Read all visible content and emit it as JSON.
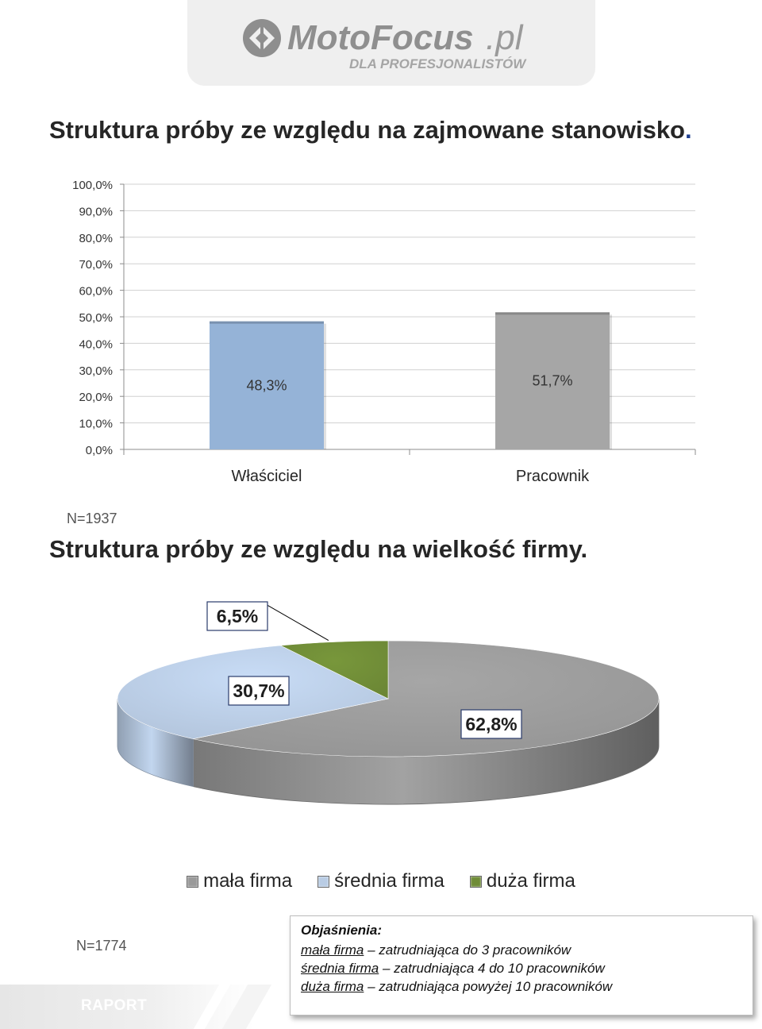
{
  "logo": {
    "brand_main": "MotoFocus",
    "brand_suffix": ".pl",
    "tagline": "DLA PROFESJONALISTÓW"
  },
  "chart1": {
    "title": "Struktura próby ze względu na zajmowane stanowisko",
    "title_dot": ".",
    "sample_note": "N=1937"
  },
  "chart2": {
    "title": "Struktura próby ze względu na wielkość firmy.",
    "sample_note": "N=1774"
  },
  "chart_data": [
    {
      "type": "bar",
      "title": "Struktura próby ze względu na zajmowane stanowisko.",
      "categories": [
        "Właściciel",
        "Pracownik"
      ],
      "values": [
        48.3,
        51.7
      ],
      "value_labels": [
        "48,3%",
        "51,7%"
      ],
      "bar_colors": [
        "#95b3d7",
        "#a6a6a6"
      ],
      "ylim": [
        0,
        100
      ],
      "yticks": [
        "0,0%",
        "10,0%",
        "20,0%",
        "30,0%",
        "40,0%",
        "50,0%",
        "60,0%",
        "70,0%",
        "80,0%",
        "90,0%",
        "100,0%"
      ],
      "grid": true,
      "xlabel": "",
      "ylabel": ""
    },
    {
      "type": "pie",
      "title": "Struktura próby ze względu na wielkość firmy.",
      "categories": [
        "mała firma",
        "średnia firma",
        "duża firma"
      ],
      "values": [
        62.8,
        30.7,
        6.5
      ],
      "value_labels": [
        "62,8%",
        "30,7%",
        "6,5%"
      ],
      "colors": [
        "#9a9a9a",
        "#b9cce4",
        "#6f8c37"
      ],
      "legend_position": "bottom",
      "style": "3d"
    }
  ],
  "legend": {
    "items": [
      {
        "label": "mała firma",
        "color": "#9a9a9a"
      },
      {
        "label": "średnia firma",
        "color": "#b9cce4"
      },
      {
        "label": "duża firma",
        "color": "#6f8c37"
      }
    ]
  },
  "notes": {
    "title": "Objaśnienia:",
    "lines": [
      {
        "term": "mała firma",
        "desc": " – zatrudniająca do 3 pracowników"
      },
      {
        "term": "średnia firma",
        "desc": " – zatrudniająca 4 do 10 pracowników"
      },
      {
        "term": "duża firma",
        "desc": " – zatrudniająca powyżej 10 pracowników"
      }
    ]
  },
  "footer": {
    "label": "RAPORT"
  }
}
